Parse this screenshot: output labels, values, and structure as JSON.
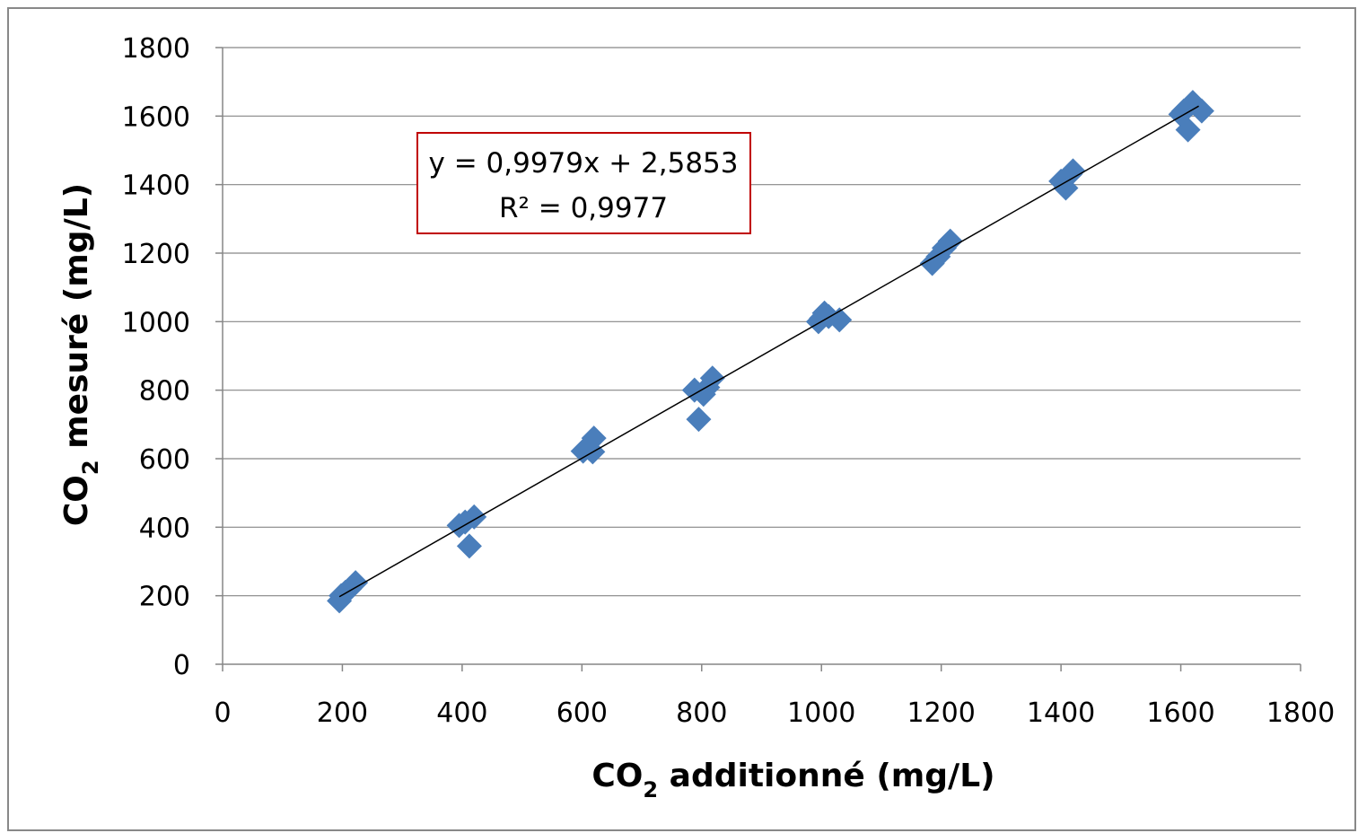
{
  "chart_data": {
    "type": "scatter",
    "xlabel": {
      "main": "CO",
      "sub": "2",
      "rest": " additionné (mg/L)"
    },
    "ylabel": {
      "main": "CO",
      "sub": "2",
      "rest": " mesuré (mg/L)"
    },
    "xlim": [
      0,
      1800
    ],
    "ylim": [
      0,
      1800
    ],
    "xticks": [
      "0",
      "200",
      "400",
      "600",
      "800",
      "1000",
      "1200",
      "1400",
      "1600",
      "1800"
    ],
    "yticks": [
      "0",
      "200",
      "400",
      "600",
      "800",
      "1000",
      "1200",
      "1400",
      "1600",
      "1800"
    ],
    "grid": "horizontal",
    "marker_color": "#4a7ebb",
    "points": [
      {
        "x": 195,
        "y": 185
      },
      {
        "x": 198,
        "y": 200
      },
      {
        "x": 205,
        "y": 210
      },
      {
        "x": 212,
        "y": 220
      },
      {
        "x": 222,
        "y": 238
      },
      {
        "x": 395,
        "y": 405
      },
      {
        "x": 405,
        "y": 415
      },
      {
        "x": 412,
        "y": 345
      },
      {
        "x": 420,
        "y": 430
      },
      {
        "x": 602,
        "y": 622
      },
      {
        "x": 612,
        "y": 630
      },
      {
        "x": 618,
        "y": 620
      },
      {
        "x": 620,
        "y": 660
      },
      {
        "x": 788,
        "y": 800
      },
      {
        "x": 795,
        "y": 715
      },
      {
        "x": 803,
        "y": 788
      },
      {
        "x": 810,
        "y": 808
      },
      {
        "x": 818,
        "y": 835
      },
      {
        "x": 995,
        "y": 1000
      },
      {
        "x": 1000,
        "y": 1010
      },
      {
        "x": 1005,
        "y": 1025
      },
      {
        "x": 1012,
        "y": 1015
      },
      {
        "x": 1030,
        "y": 1005
      },
      {
        "x": 1185,
        "y": 1170
      },
      {
        "x": 1195,
        "y": 1190
      },
      {
        "x": 1205,
        "y": 1215
      },
      {
        "x": 1215,
        "y": 1235
      },
      {
        "x": 1400,
        "y": 1410
      },
      {
        "x": 1408,
        "y": 1390
      },
      {
        "x": 1415,
        "y": 1430
      },
      {
        "x": 1420,
        "y": 1440
      },
      {
        "x": 1600,
        "y": 1605
      },
      {
        "x": 1605,
        "y": 1615
      },
      {
        "x": 1612,
        "y": 1560
      },
      {
        "x": 1620,
        "y": 1640
      },
      {
        "x": 1635,
        "y": 1615
      }
    ],
    "trendline": {
      "slope": 0.9979,
      "intercept": 2.5853,
      "x_range": [
        195,
        1630
      ],
      "color": "#000000",
      "equation": "y = 0,9979x + 2,5853",
      "r_squared": "R² = 0,9977",
      "box_border_color": "#c00000"
    }
  }
}
